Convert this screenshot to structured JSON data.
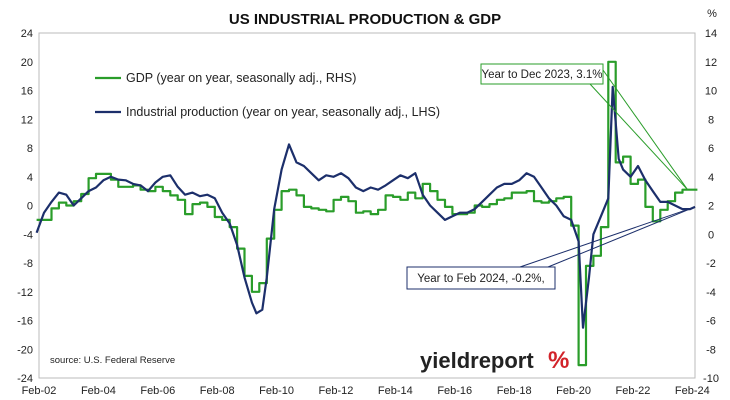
{
  "chart_data": {
    "type": "line",
    "title": "US INDUSTRIAL PRODUCTION & GDP",
    "right_axis_unit": "%",
    "source": "source: U.S. Federal Reserve",
    "brand": {
      "word": "yieldreport",
      "mark": "%"
    },
    "x_tick_labels": [
      "Feb-02",
      "Feb-04",
      "Feb-06",
      "Feb-08",
      "Feb-10",
      "Feb-12",
      "Feb-14",
      "Feb-16",
      "Feb-18",
      "Feb-20",
      "Feb-22",
      "Feb-24"
    ],
    "x_range": [
      2002.08,
      2024.17
    ],
    "y_left": {
      "min": -24,
      "max": 24,
      "step": 4
    },
    "y_right": {
      "min": -10,
      "max": 14,
      "step": 2
    },
    "grid": false,
    "legend_position": "top-left",
    "colors": {
      "gdp": "#2a9d2a",
      "ip": "#1c2f6b",
      "annotation_border": "#1c2f6b"
    },
    "series": [
      {
        "key": "gdp",
        "name": "GDP (year on year, seasonally adj., RHS)",
        "axis": "right",
        "step": true,
        "x": [
          2002.0,
          2002.5,
          2002.75,
          2003.0,
          2003.25,
          2003.5,
          2003.75,
          2004.0,
          2004.25,
          2004.5,
          2004.75,
          2005.0,
          2005.25,
          2005.5,
          2005.75,
          2006.0,
          2006.25,
          2006.5,
          2006.75,
          2007.0,
          2007.25,
          2007.5,
          2007.75,
          2008.0,
          2008.25,
          2008.5,
          2008.75,
          2009.0,
          2009.25,
          2009.5,
          2009.75,
          2010.0,
          2010.25,
          2010.5,
          2010.75,
          2011.0,
          2011.25,
          2011.5,
          2011.75,
          2012.0,
          2012.25,
          2012.5,
          2012.75,
          2013.0,
          2013.25,
          2013.5,
          2013.75,
          2014.0,
          2014.25,
          2014.5,
          2014.75,
          2015.0,
          2015.25,
          2015.5,
          2015.75,
          2016.0,
          2016.25,
          2016.5,
          2016.75,
          2017.0,
          2017.25,
          2017.5,
          2017.75,
          2018.0,
          2018.25,
          2018.5,
          2018.75,
          2019.0,
          2019.25,
          2019.5,
          2019.75,
          2020.0,
          2020.25,
          2020.5,
          2020.75,
          2021.0,
          2021.25,
          2021.5,
          2021.75,
          2022.0,
          2022.25,
          2022.5,
          2022.75,
          2023.0,
          2023.25,
          2023.5,
          2023.75,
          2024.0
        ],
        "values": [
          1.0,
          1.8,
          2.2,
          2.0,
          2.3,
          2.8,
          3.9,
          4.2,
          4.2,
          3.8,
          3.3,
          3.3,
          3.4,
          3.1,
          3.0,
          3.3,
          3.0,
          2.7,
          2.4,
          1.4,
          2.1,
          2.2,
          1.9,
          1.2,
          1.0,
          0.5,
          -1.0,
          -2.9,
          -4.0,
          -3.4,
          -0.3,
          1.7,
          3.0,
          3.1,
          2.7,
          1.9,
          1.8,
          1.7,
          1.6,
          2.4,
          2.6,
          2.3,
          1.5,
          1.6,
          1.4,
          1.7,
          2.7,
          2.6,
          2.4,
          2.9,
          2.5,
          3.5,
          3.0,
          2.4,
          1.9,
          1.4,
          1.4,
          1.5,
          2.0,
          1.9,
          2.1,
          2.4,
          2.5,
          2.9,
          2.9,
          3.0,
          2.3,
          2.2,
          2.3,
          2.5,
          2.6,
          0.6,
          -9.1,
          -2.2,
          -1.5,
          0.5,
          12.0,
          5.0,
          5.4,
          3.5,
          3.8,
          1.9,
          0.9,
          1.7,
          2.3,
          2.9,
          3.1,
          3.1
        ]
      },
      {
        "key": "ip",
        "name": "Industrial production (year on year, seasonally adj., LHS)",
        "axis": "left",
        "step": false,
        "x": [
          2002.0,
          2002.25,
          2002.5,
          2002.75,
          2003.0,
          2003.25,
          2003.5,
          2003.75,
          2004.0,
          2004.25,
          2004.5,
          2004.75,
          2005.0,
          2005.25,
          2005.5,
          2005.75,
          2006.0,
          2006.25,
          2006.5,
          2006.75,
          2007.0,
          2007.25,
          2007.5,
          2007.75,
          2008.0,
          2008.25,
          2008.5,
          2008.75,
          2009.0,
          2009.25,
          2009.4,
          2009.6,
          2009.75,
          2010.0,
          2010.25,
          2010.5,
          2010.75,
          2011.0,
          2011.25,
          2011.5,
          2011.75,
          2012.0,
          2012.25,
          2012.5,
          2012.75,
          2013.0,
          2013.25,
          2013.5,
          2013.75,
          2014.0,
          2014.25,
          2014.5,
          2014.75,
          2015.0,
          2015.25,
          2015.5,
          2015.75,
          2016.0,
          2016.25,
          2016.5,
          2016.75,
          2017.0,
          2017.25,
          2017.5,
          2017.75,
          2018.0,
          2018.25,
          2018.5,
          2018.75,
          2019.0,
          2019.25,
          2019.5,
          2019.75,
          2020.0,
          2020.25,
          2020.4,
          2020.6,
          2020.75,
          2021.0,
          2021.25,
          2021.4,
          2021.6,
          2021.75,
          2022.0,
          2022.25,
          2022.5,
          2022.75,
          2023.0,
          2023.25,
          2023.5,
          2023.75,
          2024.0,
          2024.17
        ],
        "values": [
          -3.8,
          -1.0,
          0.5,
          1.8,
          1.5,
          0.0,
          1.0,
          2.0,
          2.5,
          3.5,
          4.0,
          3.6,
          3.5,
          3.0,
          2.8,
          2.0,
          3.2,
          4.0,
          4.2,
          2.6,
          1.5,
          1.8,
          1.3,
          1.5,
          1.0,
          -1.0,
          -2.5,
          -5.5,
          -10.0,
          -13.5,
          -15.0,
          -14.5,
          -10.0,
          -0.5,
          5.0,
          8.5,
          6.0,
          5.5,
          4.5,
          3.5,
          4.2,
          4.0,
          4.5,
          3.8,
          2.5,
          2.0,
          2.5,
          2.2,
          2.8,
          3.5,
          4.2,
          3.8,
          4.5,
          1.5,
          0.0,
          -1.0,
          -2.0,
          -1.5,
          -1.0,
          -1.0,
          -0.5,
          0.5,
          1.5,
          2.5,
          3.0,
          3.0,
          3.5,
          4.5,
          4.0,
          2.5,
          1.0,
          0.0,
          -1.5,
          -2.0,
          -5.0,
          -17.0,
          -10.0,
          -4.0,
          -1.5,
          1.0,
          16.5,
          6.5,
          5.0,
          4.0,
          5.5,
          3.5,
          2.0,
          0.5,
          0.5,
          0.0,
          -0.5,
          -0.5,
          -0.2
        ]
      }
    ],
    "annotations": [
      {
        "key": "gdp",
        "text": "Year to Dec 2023, 3.1%",
        "target": {
          "x": 2023.92,
          "axis": "right",
          "value": 3.1
        }
      },
      {
        "key": "ip",
        "text": "Year to Feb 2024, -0.2%,",
        "target": {
          "x": 2024.17,
          "axis": "left",
          "value": -0.2
        }
      }
    ]
  }
}
